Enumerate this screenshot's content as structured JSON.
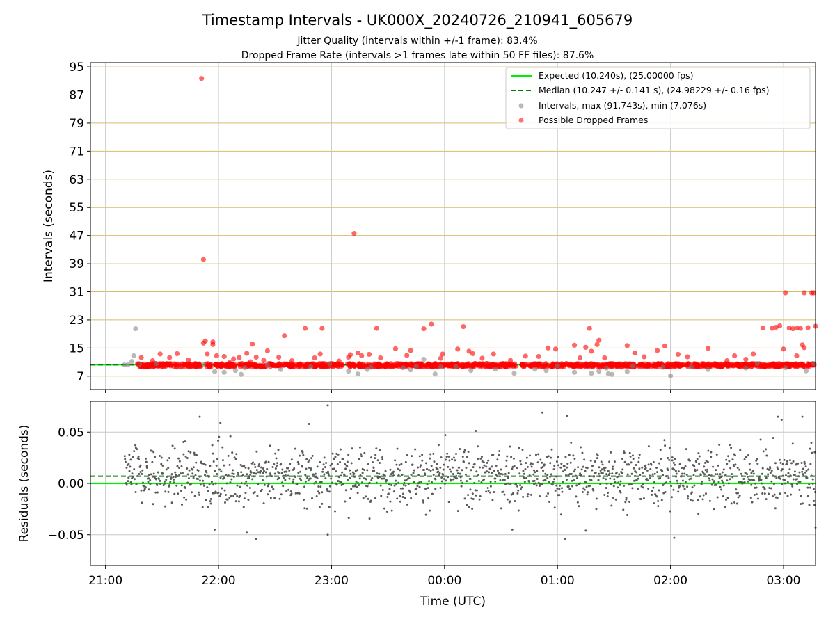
{
  "title": "Timestamp Intervals - UK000X_20240726_210941_605679",
  "subtitle_1": "Jitter Quality (intervals within +/-1 frame): 83.4%",
  "subtitle_2": "Dropped Frame Rate (intervals >1 frames late within 50 FF files): 87.6%",
  "colors": {
    "expected": "#00ee00",
    "median": "#007f00",
    "intervals": "#808080",
    "dropped": "#ff0000",
    "hgrid_top": "#d8bc6e",
    "grid": "#c8c8c8",
    "residuals": "#5a5a5a"
  },
  "chart_data": [
    {
      "type": "scatter",
      "name": "intervals",
      "xlabel": "",
      "ylabel": "Intervals (seconds)",
      "xlim": [
        "20:52",
        "03:17"
      ],
      "ylim": [
        3.2,
        96.2
      ],
      "yticks": [
        7,
        15,
        23,
        31,
        39,
        47,
        55,
        63,
        71,
        79,
        87,
        95
      ],
      "xticks": [
        "21:00",
        "22:00",
        "23:00",
        "00:00",
        "01:00",
        "02:00",
        "03:00"
      ],
      "grid": "on",
      "legend_position": "top-right",
      "legend": [
        "Expected (10.240s), (25.00000 fps)",
        "Median (10.247 +/- 0.141 s), (24.98229 +/- 0.16 fps)",
        "Intervals, max (91.743s), min (7.076s)",
        "Possible Dropped Frames"
      ],
      "expected": 10.24,
      "median": 10.247,
      "series": [
        {
          "name": "Intervals, max (91.743s), min (7.076s)",
          "points": [
            [
              "21:10",
              10.2
            ],
            [
              "21:12",
              10.3
            ],
            [
              "21:14",
              11.2
            ],
            [
              "21:15",
              12.8
            ],
            [
              "21:16",
              20.5
            ],
            [
              "21:18",
              10.4
            ],
            [
              "21:27",
              10.6
            ],
            [
              "21:52",
              10.4
            ],
            [
              "21:58",
              8.3
            ],
            [
              "22:03",
              8.1
            ],
            [
              "22:09",
              8.6
            ],
            [
              "22:12",
              7.5
            ],
            [
              "22:14",
              9.4
            ],
            [
              "22:26",
              10.1
            ],
            [
              "22:33",
              8.9
            ],
            [
              "22:49",
              9.7
            ],
            [
              "22:59",
              10.5
            ],
            [
              "23:09",
              8.4
            ],
            [
              "23:14",
              7.6
            ],
            [
              "23:19",
              8.9
            ],
            [
              "23:21",
              9.5
            ],
            [
              "23:38",
              9.4
            ],
            [
              "23:42",
              8.8
            ],
            [
              "23:45",
              9.8
            ],
            [
              "23:49",
              11.8
            ],
            [
              "23:55",
              7.6
            ],
            [
              "23:58",
              9.6
            ],
            [
              "00:06",
              9.7
            ],
            [
              "00:14",
              8.6
            ],
            [
              "00:27",
              9.0
            ],
            [
              "00:37",
              7.8
            ],
            [
              "00:48",
              9.0
            ],
            [
              "00:54",
              8.6
            ],
            [
              "01:00",
              9.9
            ],
            [
              "01:09",
              8.1
            ],
            [
              "01:18",
              7.8
            ],
            [
              "01:22",
              8.4
            ],
            [
              "01:26",
              9.3
            ],
            [
              "01:27",
              7.7
            ],
            [
              "01:29",
              7.5
            ],
            [
              "01:37",
              8.3
            ],
            [
              "01:40",
              9.9
            ],
            [
              "01:56",
              9.5
            ],
            [
              "02:00",
              7.1
            ],
            [
              "02:11",
              9.7
            ],
            [
              "02:20",
              8.9
            ],
            [
              "02:40",
              9.3
            ],
            [
              "02:46",
              10.6
            ],
            [
              "03:01",
              9.4
            ],
            [
              "03:12",
              8.5
            ],
            [
              "03:16",
              10.6
            ]
          ]
        },
        {
          "name": "Possible Dropped Frames",
          "points": [
            [
              "21:17",
              10.5
            ],
            [
              "21:19",
              12.3
            ],
            [
              "21:25",
              11.4
            ],
            [
              "21:29",
              13.3
            ],
            [
              "21:34",
              12.3
            ],
            [
              "21:38",
              13.4
            ],
            [
              "21:44",
              11.6
            ],
            [
              "21:51",
              91.7
            ],
            [
              "21:52",
              40.2
            ],
            [
              "21:52",
              16.4
            ],
            [
              "21:53",
              17.0
            ],
            [
              "21:54",
              13.3
            ],
            [
              "21:57",
              16.7
            ],
            [
              "21:57",
              16.0
            ],
            [
              "21:59",
              12.8
            ],
            [
              "22:03",
              12.6
            ],
            [
              "22:06",
              10.9
            ],
            [
              "22:08",
              11.9
            ],
            [
              "22:11",
              12.3
            ],
            [
              "22:15",
              13.5
            ],
            [
              "22:17",
              11.1
            ],
            [
              "22:18",
              16.1
            ],
            [
              "22:20",
              12.4
            ],
            [
              "22:24",
              11.5
            ],
            [
              "22:26",
              14.2
            ],
            [
              "22:32",
              12.4
            ],
            [
              "22:35",
              18.5
            ],
            [
              "22:39",
              11.4
            ],
            [
              "22:46",
              20.6
            ],
            [
              "22:51",
              12.2
            ],
            [
              "22:54",
              13.3
            ],
            [
              "22:55",
              20.6
            ],
            [
              "23:04",
              11.3
            ],
            [
              "23:09",
              12.4
            ],
            [
              "23:10",
              13.1
            ],
            [
              "23:12",
              47.6
            ],
            [
              "23:14",
              13.6
            ],
            [
              "23:16",
              12.8
            ],
            [
              "23:20",
              13.2
            ],
            [
              "23:24",
              20.6
            ],
            [
              "23:26",
              12.2
            ],
            [
              "23:34",
              14.8
            ],
            [
              "23:40",
              12.9
            ],
            [
              "23:42",
              14.3
            ],
            [
              "23:49",
              20.5
            ],
            [
              "23:53",
              21.8
            ],
            [
              "23:58",
              12.1
            ],
            [
              "23:59",
              13.3
            ],
            [
              "00:07",
              14.7
            ],
            [
              "00:10",
              21.1
            ],
            [
              "00:13",
              14.1
            ],
            [
              "00:15",
              13.4
            ],
            [
              "00:20",
              12.1
            ],
            [
              "00:26",
              13.3
            ],
            [
              "00:35",
              11.5
            ],
            [
              "00:43",
              12.7
            ],
            [
              "00:50",
              12.6
            ],
            [
              "00:55",
              15.0
            ],
            [
              "00:59",
              14.7
            ],
            [
              "01:09",
              15.8
            ],
            [
              "01:12",
              12.2
            ],
            [
              "01:15",
              15.2
            ],
            [
              "01:17",
              20.6
            ],
            [
              "01:18",
              14.1
            ],
            [
              "01:21",
              16.0
            ],
            [
              "01:22",
              17.2
            ],
            [
              "01:25",
              12.2
            ],
            [
              "01:37",
              15.7
            ],
            [
              "01:41",
              13.6
            ],
            [
              "01:46",
              12.5
            ],
            [
              "01:53",
              14.3
            ],
            [
              "01:57",
              15.6
            ],
            [
              "02:04",
              13.2
            ],
            [
              "02:09",
              12.5
            ],
            [
              "02:20",
              14.9
            ],
            [
              "02:30",
              11.4
            ],
            [
              "02:34",
              12.8
            ],
            [
              "02:40",
              11.8
            ],
            [
              "02:44",
              13.3
            ],
            [
              "02:49",
              20.7
            ],
            [
              "02:54",
              20.6
            ],
            [
              "02:56",
              20.9
            ],
            [
              "02:58",
              21.3
            ],
            [
              "03:00",
              14.7
            ],
            [
              "03:01",
              30.7
            ],
            [
              "03:03",
              20.7
            ],
            [
              "03:05",
              20.5
            ],
            [
              "03:07",
              20.7
            ],
            [
              "03:07",
              12.8
            ],
            [
              "03:09",
              20.6
            ],
            [
              "03:10",
              15.9
            ],
            [
              "03:11",
              15.1
            ],
            [
              "03:11",
              30.7
            ],
            [
              "03:13",
              20.8
            ],
            [
              "03:15",
              30.7
            ],
            [
              "03:16",
              30.7
            ],
            [
              "03:17",
              21.2
            ]
          ]
        }
      ]
    },
    {
      "type": "scatter",
      "name": "residuals",
      "xlabel": "Time (UTC)",
      "ylabel": "Residuals (seconds)",
      "xlim": [
        "20:52",
        "03:17"
      ],
      "ylim": [
        -0.08,
        0.08
      ],
      "yticks": [
        0.05,
        0.0,
        -0.05
      ],
      "ytick_labels": [
        "0.05",
        "0.00",
        "−0.05"
      ],
      "xticks": [
        "21:00",
        "22:00",
        "23:00",
        "00:00",
        "01:00",
        "02:00",
        "03:00"
      ],
      "grid": "on",
      "expected": 0.0,
      "median": 0.007,
      "residual_spread": 0.02,
      "residual_range": [
        -0.055,
        0.075
      ],
      "x_start": "21:10",
      "x_end": "03:17",
      "point_count": 1500,
      "outliers": [
        [
          "21:50",
          0.065
        ],
        [
          "21:58",
          -0.045
        ],
        [
          "22:01",
          0.059
        ],
        [
          "22:15",
          -0.048
        ],
        [
          "22:20",
          -0.054
        ],
        [
          "22:48",
          0.058
        ],
        [
          "22:58",
          0.076
        ],
        [
          "22:58",
          -0.05
        ],
        [
          "00:36",
          -0.045
        ],
        [
          "00:52",
          0.069
        ],
        [
          "01:04",
          -0.054
        ],
        [
          "01:05",
          0.066
        ],
        [
          "01:15",
          -0.046
        ],
        [
          "02:02",
          -0.053
        ],
        [
          "02:57",
          0.065
        ],
        [
          "02:59",
          0.062
        ],
        [
          "03:10",
          0.065
        ],
        [
          "03:17",
          -0.043
        ]
      ]
    }
  ]
}
